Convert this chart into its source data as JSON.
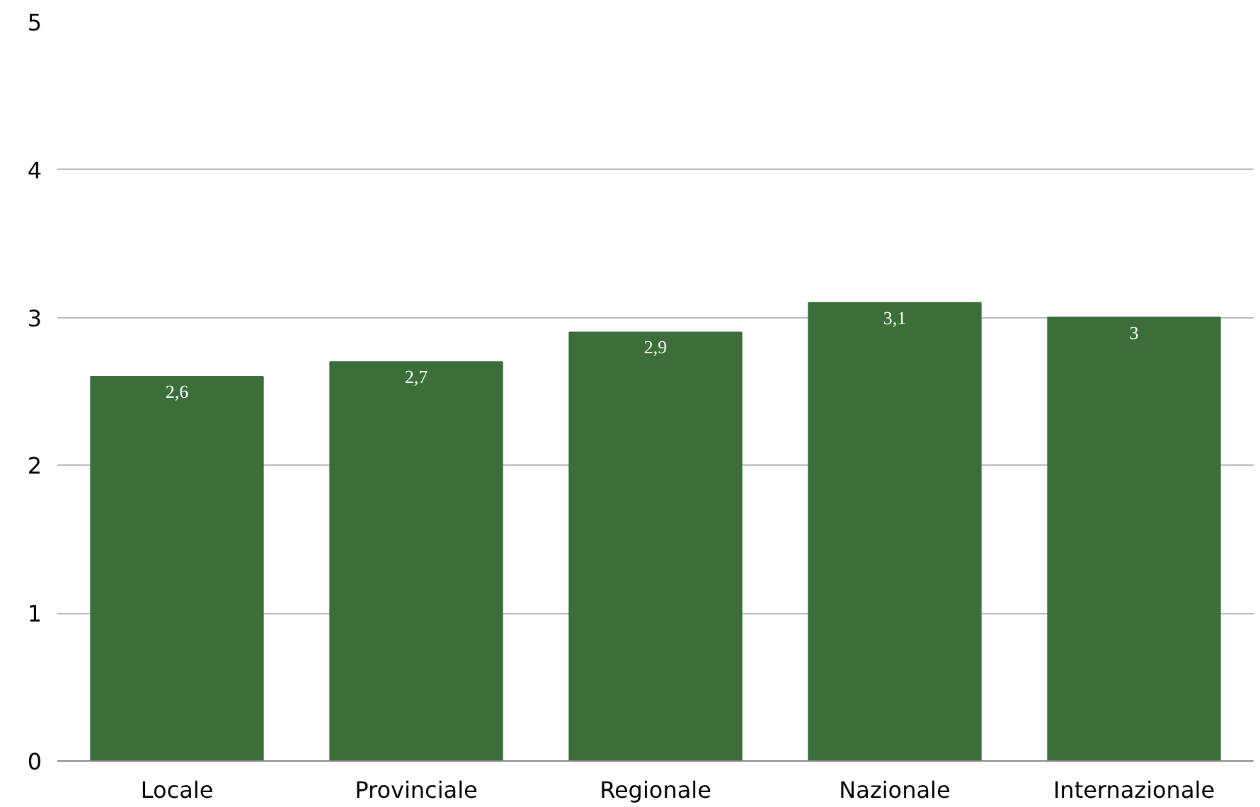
{
  "chart_data": {
    "type": "bar",
    "categories": [
      "Locale",
      "Provinciale",
      "Regionale",
      "Nazionale",
      "Internazionale"
    ],
    "values": [
      2.6,
      2.7,
      2.9,
      3.1,
      3
    ],
    "value_labels": [
      "2,6",
      "2,7",
      "2,9",
      "3,1",
      "3"
    ],
    "color": "#3b6e38",
    "ylim": [
      0,
      5
    ],
    "yticks": [
      0,
      1,
      2,
      3,
      4,
      5
    ],
    "grid": "y"
  }
}
